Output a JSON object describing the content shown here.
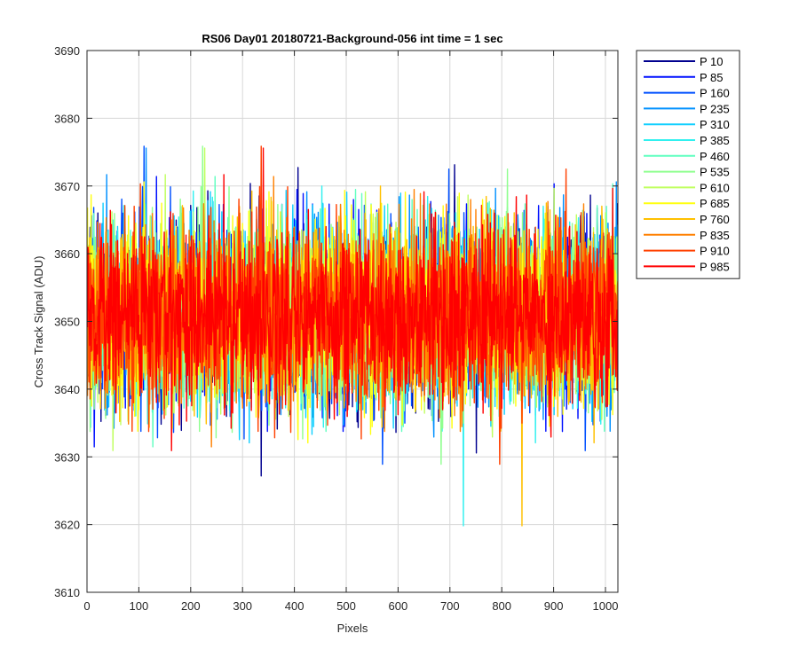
{
  "chart_data": {
    "type": "line",
    "title": "RS06 Day01 20180721-Background-056 int time = 1 sec",
    "xlabel": "Pixels",
    "ylabel": "Cross Track Signal (ADU)",
    "xlim": [
      0,
      1024
    ],
    "ylim": [
      3610,
      3690
    ],
    "xticks": [
      0,
      100,
      200,
      300,
      400,
      500,
      600,
      700,
      800,
      900,
      1000
    ],
    "yticks": [
      3610,
      3620,
      3630,
      3640,
      3650,
      3660,
      3670,
      3680,
      3690
    ],
    "grid": true,
    "legend_position": "outside-top-right",
    "x": {
      "start": 1,
      "end": 1024
    },
    "noise_model": {
      "mean": 3651,
      "std": 6.5,
      "min": 3618,
      "max": 3685
    },
    "series": [
      {
        "name": "P 10",
        "color": "#00008f"
      },
      {
        "name": "P 85",
        "color": "#0010ff"
      },
      {
        "name": "P 160",
        "color": "#0050ff"
      },
      {
        "name": "P 235",
        "color": "#0090ff"
      },
      {
        "name": "P 310",
        "color": "#10cfff"
      },
      {
        "name": "P 385",
        "color": "#30f0ef"
      },
      {
        "name": "P 460",
        "color": "#60ffc0"
      },
      {
        "name": "P 535",
        "color": "#90ff90"
      },
      {
        "name": "P 610",
        "color": "#c0ff60"
      },
      {
        "name": "P 685",
        "color": "#ffff10"
      },
      {
        "name": "P 760",
        "color": "#ffc000"
      },
      {
        "name": "P 835",
        "color": "#ff8000"
      },
      {
        "name": "P 910",
        "color": "#ff4000"
      },
      {
        "name": "P 985",
        "color": "#ff0000"
      }
    ]
  }
}
